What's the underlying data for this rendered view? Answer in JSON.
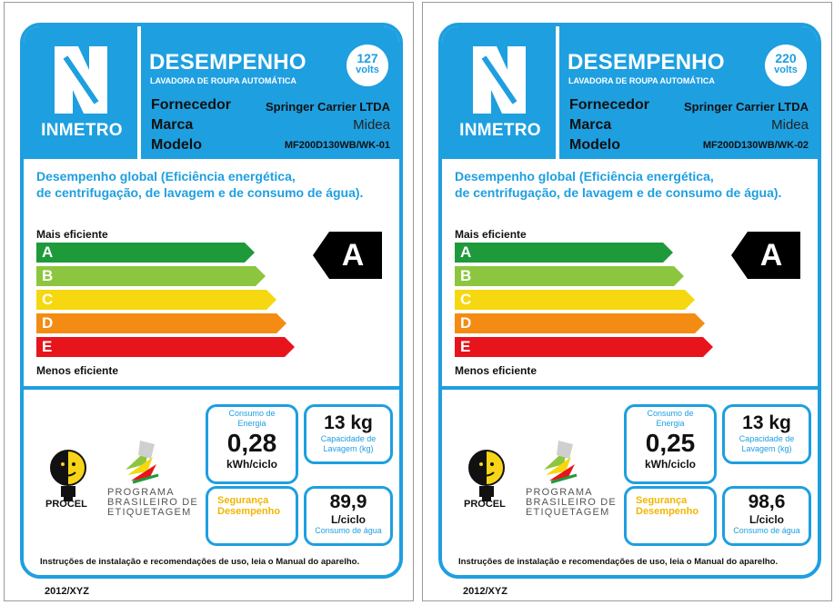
{
  "labels": [
    {
      "logo": "INMETRO",
      "title": "DESEMPENHO",
      "subtitle": "LAVADORA DE ROUPA AUTOMÁTICA",
      "volts_value": "127",
      "volts_unit": "volts",
      "supplier_label": "Fornecedor",
      "supplier_value": "Springer Carrier LTDA",
      "brand_label": "Marca",
      "brand_value": "Midea",
      "model_label": "Modelo",
      "model_value": "MF200D130WB/WK-01",
      "description_line1": "Desempenho global (Eficiência energética,",
      "description_line2": "de centrifugação, de lavagem e de consumo de água).",
      "most_efficient": "Mais eficiente",
      "least_efficient": "Menos eficiente",
      "classes": [
        "A",
        "B",
        "C",
        "D",
        "E"
      ],
      "rating": "A",
      "energy_title_line1": "Consumo de",
      "energy_title_line2": "Energia",
      "energy_value": "0,28",
      "energy_unit": "kWh/ciclo",
      "capacity_value": "13 kg",
      "capacity_label_line1": "Capacidade de",
      "capacity_label_line2": "Lavagem (kg)",
      "safety_line1": "Segurança",
      "safety_line2": "Desempenho",
      "water_value": "89,9",
      "water_unit": "L/ciclo",
      "water_label": "Consumo de água",
      "procel": "PROCEL",
      "pbe_line1": "PROGRAMA",
      "pbe_line2": "BRASILEIRO DE",
      "pbe_line3": "ETIQUETAGEM",
      "footer": "Instruções de instalação e recomendações de uso, leia o Manual do aparelho.",
      "code": "2012/XYZ"
    },
    {
      "logo": "INMETRO",
      "title": "DESEMPENHO",
      "subtitle": "LAVADORA DE ROUPA AUTOMÁTICA",
      "volts_value": "220",
      "volts_unit": "volts",
      "supplier_label": "Fornecedor",
      "supplier_value": "Springer Carrier LTDA",
      "brand_label": "Marca",
      "brand_value": "Midea",
      "model_label": "Modelo",
      "model_value": "MF200D130WB/WK-02",
      "description_line1": "Desempenho global (Eficiência energética,",
      "description_line2": "de centrifugação, de lavagem e de consumo de água).",
      "most_efficient": "Mais eficiente",
      "least_efficient": "Menos eficiente",
      "classes": [
        "A",
        "B",
        "C",
        "D",
        "E"
      ],
      "rating": "A",
      "energy_title_line1": "Consumo de",
      "energy_title_line2": "Energia",
      "energy_value": "0,25",
      "energy_unit": "kWh/ciclo",
      "capacity_value": "13 kg",
      "capacity_label_line1": "Capacidade de",
      "capacity_label_line2": "Lavagem (kg)",
      "safety_line1": "Segurança",
      "safety_line2": "Desempenho",
      "water_value": "98,6",
      "water_unit": "L/ciclo",
      "water_label": "Consumo de água",
      "procel": "PROCEL",
      "pbe_line1": "PROGRAMA",
      "pbe_line2": "BRASILEIRO DE",
      "pbe_line3": "ETIQUETAGEM",
      "footer": "Instruções de instalação e recomendações de uso, leia o Manual do aparelho.",
      "code": "2012/XYZ"
    }
  ],
  "colors": {
    "frame_blue": "#1e9fe0",
    "class_A": "#1f9a3b",
    "class_B": "#8cc63e",
    "class_C": "#f5d80f",
    "class_D": "#f48c14",
    "class_E": "#e8141c"
  }
}
